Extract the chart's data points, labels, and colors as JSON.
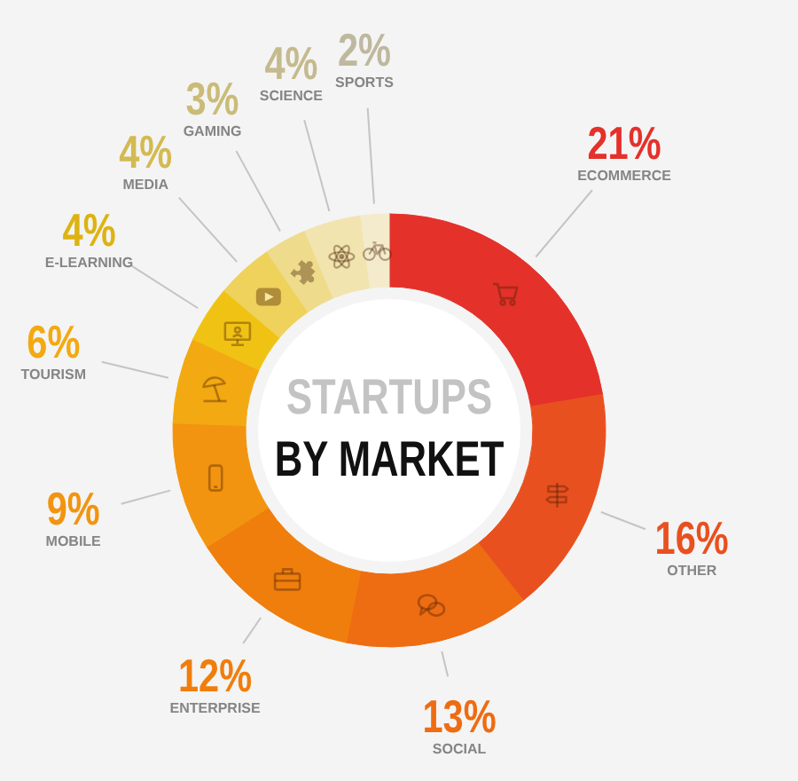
{
  "chart_data": {
    "type": "donut",
    "title": "STARTUPS",
    "subtitle": "BY MARKET",
    "categories": [
      "ECOMMERCE",
      "OTHER",
      "SOCIAL",
      "ENTERPRISE",
      "MOBILE",
      "TOURISM",
      "E-LEARNING",
      "MEDIA",
      "GAMING",
      "SCIENCE",
      "SPORTS"
    ],
    "values": [
      21,
      16,
      13,
      12,
      9,
      6,
      4,
      4,
      3,
      4,
      2
    ],
    "colors": [
      "#e4312a",
      "#e9501f",
      "#ee6c12",
      "#f07e0c",
      "#f29410",
      "#f3a912",
      "#f0c214",
      "#efd25c",
      "#eedc8c",
      "#f1e4ae",
      "#f3ebcb"
    ],
    "value_labels": [
      "21%",
      "16%",
      "13%",
      "12%",
      "9%",
      "6%",
      "4%",
      "4%",
      "3%",
      "4%",
      "2%"
    ]
  }
}
